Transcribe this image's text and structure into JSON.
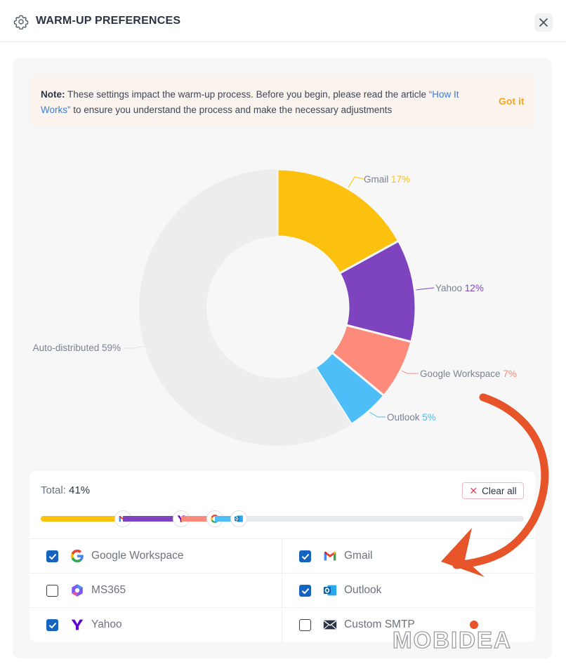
{
  "header": {
    "title": "WARM-UP PREFERENCES",
    "icon": "gear-icon",
    "close_icon": "close-icon"
  },
  "note": {
    "prefix": "Note:",
    "text_before_link": " These settings impact the warm-up process. Before you begin, please read the article ",
    "link": "“How It Works”",
    "text_after_link": " to ensure you understand the process and make the necessary adjustments",
    "button": "Got it"
  },
  "chart_data": {
    "type": "pie",
    "labels": [
      "Gmail",
      "Yahoo",
      "Google Workspace",
      "Outlook",
      "Auto-distributed"
    ],
    "values": [
      17,
      12,
      7,
      5,
      59
    ],
    "display": [
      "17%",
      "12%",
      "7%",
      "5%",
      "59%"
    ],
    "colors": [
      "#fcc10f",
      "#7e44c0",
      "#fd8b7c",
      "#4dbef7",
      "#ededed"
    ]
  },
  "distribution": {
    "total_label": "Total:",
    "total_value": "41%",
    "total": 41,
    "clear_label": "Clear all",
    "segments": [
      {
        "name": "Gmail",
        "value": 17,
        "color": "#fcc10f",
        "icon": "gmail-icon"
      },
      {
        "name": "Yahoo",
        "value": 12,
        "color": "#7e44c0",
        "icon": "yahoo-icon"
      },
      {
        "name": "Google Workspace",
        "value": 7,
        "color": "#fd8b7c",
        "icon": "google-icon"
      },
      {
        "name": "Outlook",
        "value": 5,
        "color": "#4dbef7",
        "icon": "outlook-icon"
      }
    ]
  },
  "providers": [
    {
      "label": "Google Workspace",
      "checked": true,
      "icon": "google-icon"
    },
    {
      "label": "Gmail",
      "checked": true,
      "icon": "gmail-icon"
    },
    {
      "label": "MS365",
      "checked": false,
      "icon": "ms365-icon"
    },
    {
      "label": "Outlook",
      "checked": true,
      "icon": "outlook-icon"
    },
    {
      "label": "Yahoo",
      "checked": true,
      "icon": "yahoo-icon"
    },
    {
      "label": "Custom SMTP",
      "checked": false,
      "icon": "envelope-icon"
    }
  ],
  "watermark": "MOBIDEA"
}
